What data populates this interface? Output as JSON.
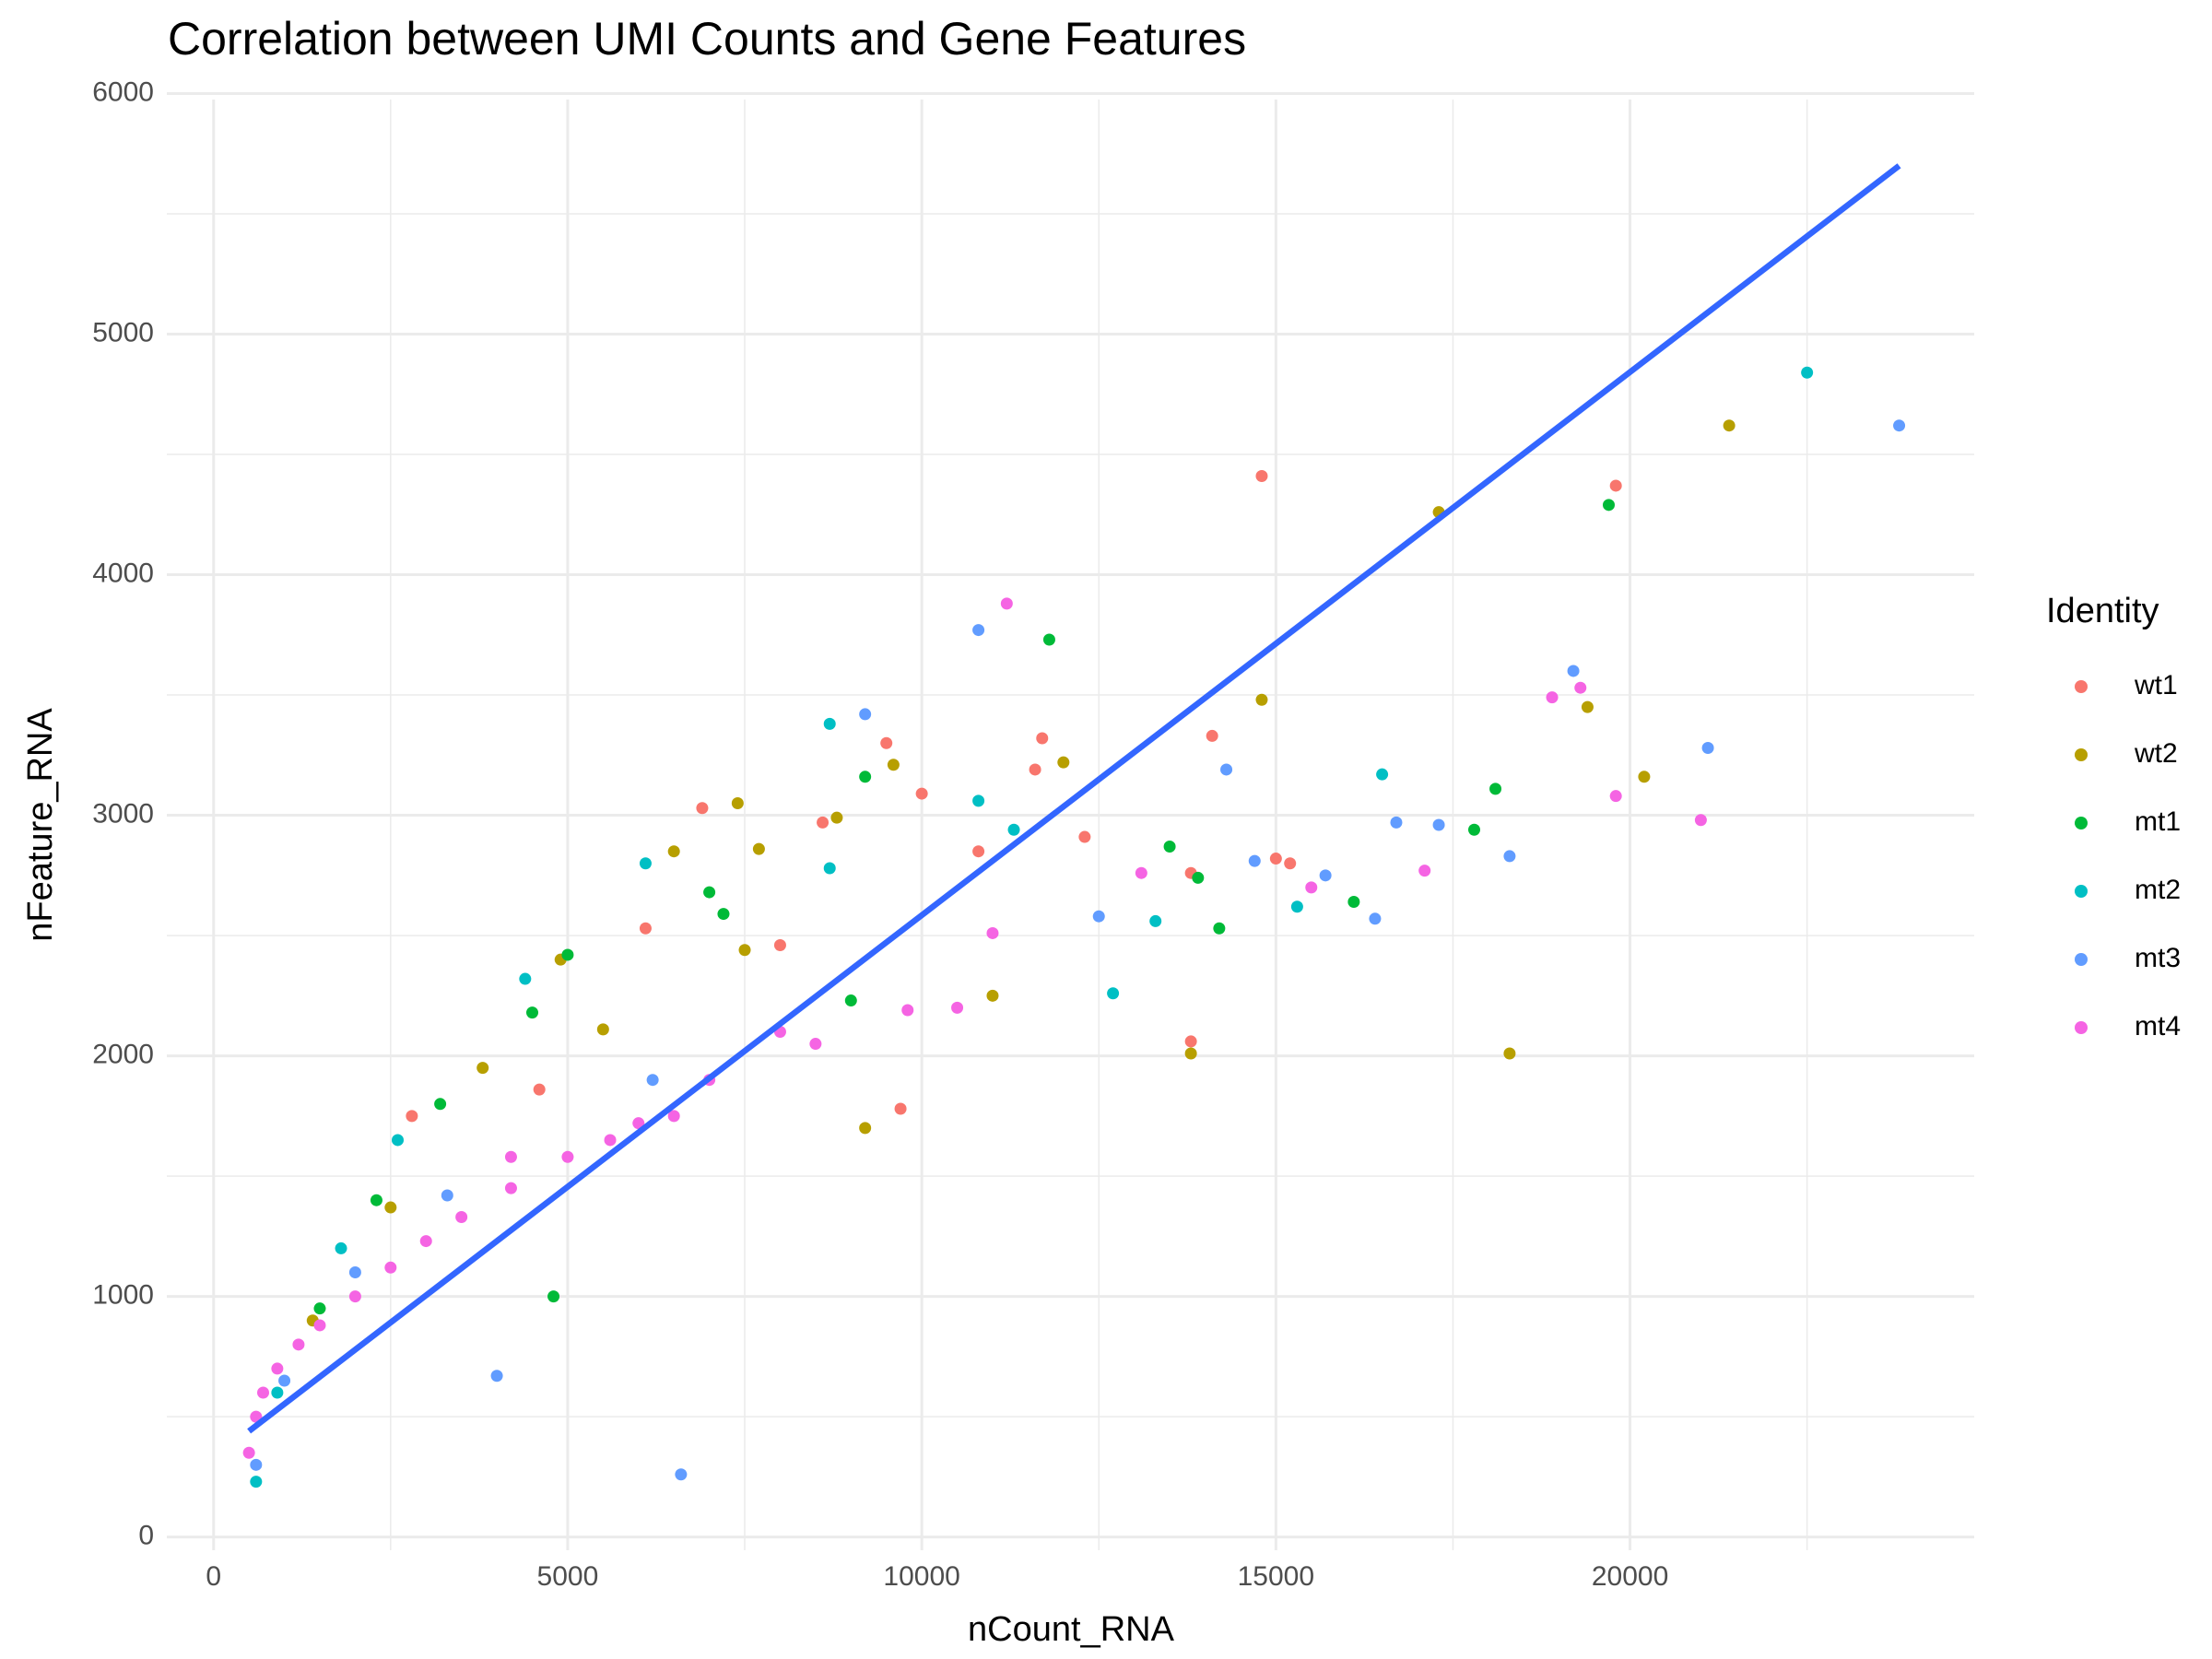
{
  "chart_data": {
    "type": "scatter",
    "title": "Correlation between UMI Counts and Gene Features",
    "x_label": "nCount_RNA",
    "y_label": "nFeature_RNA",
    "legend_title": "Identity",
    "legend_position": "right",
    "grid": true,
    "xlim": [
      -660,
      24860
    ],
    "ylim": [
      -55,
      5975
    ],
    "xticks": [
      0,
      5000,
      10000,
      15000,
      20000
    ],
    "yticks": [
      0,
      1000,
      2000,
      3000,
      4000,
      5000,
      6000
    ],
    "x_minor_grid": [
      2500,
      7500,
      12500,
      17500,
      22500
    ],
    "y_minor_grid": [
      500,
      1500,
      2500,
      3500,
      4500,
      5500
    ],
    "series": [
      {
        "name": "wt1",
        "color": "#F8766D",
        "x": [
          14800,
          19800,
          11700,
          9500,
          10000,
          6900,
          8600,
          11600,
          12300,
          14100,
          15000,
          15200,
          13800,
          13800,
          6100,
          4600,
          8000,
          10800,
          2800,
          9700
        ],
        "values": [
          4410,
          4370,
          3320,
          3300,
          3090,
          3030,
          2970,
          3190,
          2910,
          3330,
          2820,
          2800,
          2060,
          2760,
          2530,
          1860,
          2460,
          2850,
          1750,
          1780
        ]
      },
      {
        "name": "wt2",
        "color": "#B79F00",
        "x": [
          21400,
          17300,
          14800,
          19400,
          20200,
          18300,
          13800,
          7400,
          8800,
          9600,
          6500,
          7700,
          12000,
          7500,
          5500,
          9200,
          4900,
          3800,
          2500,
          1400,
          11000
        ],
        "values": [
          4620,
          4260,
          3480,
          3450,
          3160,
          2010,
          2010,
          3050,
          2990,
          3210,
          2850,
          2860,
          3220,
          2440,
          2110,
          1700,
          2400,
          1950,
          1370,
          900,
          2250
        ]
      },
      {
        "name": "mt1",
        "color": "#00BA38",
        "x": [
          19700,
          11800,
          9200,
          18100,
          17800,
          16100,
          14200,
          13900,
          7000,
          7200,
          5000,
          4500,
          3200,
          2300,
          4800,
          9000,
          13500,
          1500
        ],
        "values": [
          4290,
          3730,
          3160,
          3110,
          2940,
          2640,
          2530,
          2740,
          2680,
          2590,
          2420,
          2180,
          1800,
          1400,
          1000,
          2230,
          2870,
          950
        ]
      },
      {
        "name": "mt2",
        "color": "#00BFC4",
        "x": [
          22500,
          16500,
          8700,
          10800,
          11300,
          15300,
          13300,
          12700,
          6100,
          4400,
          2600,
          8700,
          1800,
          900,
          600
        ],
        "values": [
          4840,
          3170,
          3380,
          3060,
          2940,
          2620,
          2560,
          2260,
          2800,
          2320,
          1650,
          2780,
          1200,
          600,
          230
        ]
      },
      {
        "name": "mt3",
        "color": "#619CFF",
        "x": [
          23800,
          21100,
          19200,
          18300,
          16700,
          17300,
          16400,
          14300,
          10800,
          9200,
          14700,
          6600,
          4000,
          15700,
          12500,
          6200,
          3300,
          2000,
          1000,
          600
        ],
        "values": [
          4620,
          3280,
          3600,
          2830,
          2970,
          2960,
          2570,
          3190,
          3770,
          3420,
          2810,
          260,
          670,
          2750,
          2580,
          1900,
          1420,
          1100,
          650,
          300
        ]
      },
      {
        "name": "mt4",
        "color": "#F564E3",
        "x": [
          11200,
          19300,
          18900,
          19800,
          21000,
          17100,
          13100,
          15500,
          11000,
          9800,
          8000,
          7000,
          6000,
          5000,
          4200,
          3500,
          3000,
          2500,
          2000,
          1500,
          1200,
          900,
          700,
          600,
          500,
          4200,
          6500,
          8500,
          10500,
          5600
        ],
        "values": [
          3880,
          3530,
          3490,
          3080,
          2980,
          2770,
          2760,
          2700,
          2510,
          2190,
          2100,
          1900,
          1720,
          1580,
          1450,
          1330,
          1230,
          1120,
          1000,
          880,
          800,
          700,
          600,
          500,
          350,
          1580,
          1750,
          2050,
          2200,
          1650
        ]
      }
    ],
    "trend_line": {
      "color": "#3366FF",
      "x": [
        500,
        23800
      ],
      "values": [
        440,
        5700
      ]
    }
  }
}
